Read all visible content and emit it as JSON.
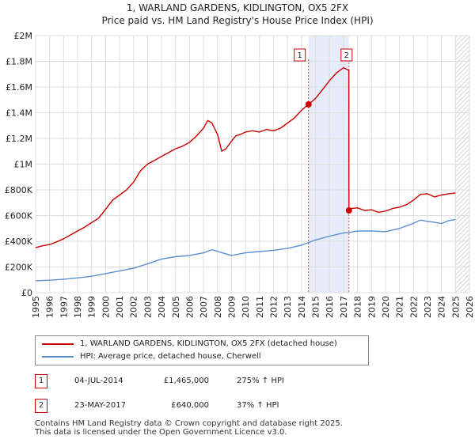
{
  "title_line1": "1, WARLAND GARDENS, KIDLINGTON, OX5 2FX",
  "title_line2": "Price paid vs. HM Land Registry's House Price Index (HPI)",
  "chart_data": {
    "type": "line",
    "title": "1, WARLAND GARDENS, KIDLINGTON, OX5 2FX — Price paid vs. HM Land Registry's House Price Index (HPI)",
    "xlim": [
      1995,
      2026
    ],
    "ylim": [
      0,
      2000000
    ],
    "x_ticks": [
      "1995",
      "1996",
      "1997",
      "1998",
      "1999",
      "2000",
      "2001",
      "2002",
      "2003",
      "2004",
      "2005",
      "2006",
      "2007",
      "2008",
      "2009",
      "2010",
      "2011",
      "2012",
      "2013",
      "2014",
      "2015",
      "2016",
      "2017",
      "2018",
      "2019",
      "2020",
      "2021",
      "2022",
      "2023",
      "2024",
      "2025",
      "2026"
    ],
    "y_ticks": [
      {
        "value": 0,
        "label": "£0"
      },
      {
        "value": 200000,
        "label": "£200K"
      },
      {
        "value": 400000,
        "label": "£400K"
      },
      {
        "value": 600000,
        "label": "£600K"
      },
      {
        "value": 800000,
        "label": "£800K"
      },
      {
        "value": 1000000,
        "label": "£1M"
      },
      {
        "value": 1200000,
        "label": "£1.2M"
      },
      {
        "value": 1400000,
        "label": "£1.4M"
      },
      {
        "value": 1600000,
        "label": "£1.6M"
      },
      {
        "value": 1800000,
        "label": "£1.8M"
      },
      {
        "value": 2000000,
        "label": "£2M"
      }
    ],
    "series": [
      {
        "name": "1, WARLAND GARDENS, KIDLINGTON, OX5 2FX (detached house)",
        "color": "#cc0000",
        "x": [
          1995.0,
          1995.5,
          1996.0,
          1996.5,
          1997.0,
          1997.5,
          1998.0,
          1998.5,
          1999.0,
          1999.5,
          2000.0,
          2000.5,
          2001.0,
          2001.5,
          2002.0,
          2002.5,
          2003.0,
          2003.5,
          2004.0,
          2004.5,
          2005.0,
          2005.5,
          2006.0,
          2006.5,
          2007.0,
          2007.3,
          2007.6,
          2008.0,
          2008.3,
          2008.6,
          2009.0,
          2009.3,
          2009.6,
          2010.0,
          2010.5,
          2011.0,
          2011.5,
          2012.0,
          2012.5,
          2013.0,
          2013.5,
          2014.0,
          2014.5,
          2015.0,
          2015.5,
          2016.0,
          2016.5,
          2017.0,
          2017.38,
          2017.39,
          2017.5,
          2018.0,
          2018.5,
          2019.0,
          2019.5,
          2020.0,
          2020.5,
          2021.0,
          2021.5,
          2022.0,
          2022.5,
          2023.0,
          2023.5,
          2024.0,
          2024.5,
          2025.0
        ],
        "values": [
          350000,
          365000,
          375000,
          395000,
          420000,
          450000,
          480000,
          510000,
          545000,
          580000,
          650000,
          720000,
          760000,
          800000,
          860000,
          950000,
          1000000,
          1030000,
          1060000,
          1090000,
          1120000,
          1140000,
          1170000,
          1220000,
          1280000,
          1340000,
          1320000,
          1230000,
          1100000,
          1120000,
          1180000,
          1220000,
          1230000,
          1250000,
          1260000,
          1250000,
          1270000,
          1260000,
          1280000,
          1320000,
          1360000,
          1420000,
          1465000,
          1510000,
          1580000,
          1650000,
          1710000,
          1750000,
          1730000,
          640000,
          655000,
          660000,
          640000,
          645000,
          625000,
          635000,
          655000,
          665000,
          685000,
          720000,
          765000,
          770000,
          745000,
          760000,
          770000,
          775000
        ]
      },
      {
        "name": "HPI: Average price, detached house, Cherwell",
        "color": "#5b8fd0",
        "x": [
          1995.0,
          1996.0,
          1997.0,
          1998.0,
          1999.0,
          2000.0,
          2001.0,
          2002.0,
          2003.0,
          2004.0,
          2005.0,
          2006.0,
          2007.0,
          2007.6,
          2008.5,
          2009.0,
          2010.0,
          2011.0,
          2012.0,
          2013.0,
          2014.0,
          2014.5,
          2015.0,
          2016.0,
          2017.0,
          2017.4,
          2018.0,
          2019.0,
          2020.0,
          2021.0,
          2022.0,
          2022.5,
          2023.0,
          2023.5,
          2024.0,
          2024.5,
          2025.0
        ],
        "values": [
          93000,
          97000,
          105000,
          115000,
          128000,
          148000,
          170000,
          190000,
          225000,
          262000,
          280000,
          290000,
          310000,
          335000,
          305000,
          290000,
          310000,
          320000,
          330000,
          345000,
          370000,
          390000,
          410000,
          440000,
          465000,
          468000,
          480000,
          480000,
          475000,
          500000,
          540000,
          565000,
          555000,
          548000,
          538000,
          560000,
          570000
        ]
      }
    ],
    "sales": [
      {
        "label": "1",
        "x": 2014.5,
        "value": 1465000
      },
      {
        "label": "2",
        "x": 2017.39,
        "value": 640000
      }
    ]
  },
  "legend": {
    "property": "1, WARLAND GARDENS, KIDLINGTON, OX5 2FX (detached house)",
    "hpi": "HPI: Average price, detached house, Cherwell"
  },
  "transactions": [
    {
      "num": "1",
      "date": "04-JUL-2014",
      "price": "£1,465,000",
      "hpi": "275% ↑ HPI"
    },
    {
      "num": "2",
      "date": "23-MAY-2017",
      "price": "£640,000",
      "hpi": "37% ↑ HPI"
    }
  ],
  "footer_line1": "Contains HM Land Registry data © Crown copyright and database right 2025.",
  "footer_line2": "This data is licensed under the Open Government Licence v3.0.",
  "colors": {
    "property": "#cc0000",
    "hpi": "#5b8fd0",
    "shade": "#dde6f7"
  }
}
